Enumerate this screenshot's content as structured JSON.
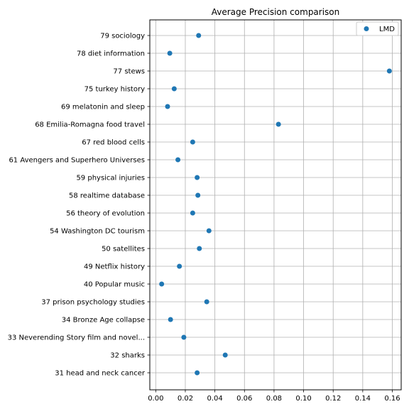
{
  "chart_data": {
    "type": "scatter",
    "title": "Average Precision comparison",
    "xlabel": "",
    "ylabel": "",
    "xlim": [
      -0.004,
      0.166
    ],
    "xticks": [
      0.0,
      0.02,
      0.04,
      0.06,
      0.08,
      0.1,
      0.12,
      0.14,
      0.16
    ],
    "xtick_labels": [
      "0.00",
      "0.02",
      "0.04",
      "0.06",
      "0.08",
      "0.10",
      "0.12",
      "0.14",
      "0.16"
    ],
    "grid": true,
    "legend": {
      "placement": "top-right",
      "entries": [
        "LMD"
      ]
    },
    "color": "#1f77b4",
    "categories": [
      "79 sociology",
      "78 diet information",
      "77 stews",
      "75 turkey history",
      "69 melatonin and sleep",
      "68 Emilia-Romagna food travel",
      "67 red blood cells",
      "61 Avengers and Superhero Universes",
      "59 physical injuries",
      "58 realtime database",
      "56 theory of evolution",
      "54 Washington DC tourism",
      "50 satellites",
      "49 Netflix history",
      "40 Popular music",
      "37 prison psychology studies",
      "34 Bronze Age collapse",
      "33 Neverending Story film and novel...",
      "32 sharks",
      "31 head and neck cancer"
    ],
    "series": [
      {
        "name": "LMD",
        "values": [
          0.029,
          0.0095,
          0.158,
          0.0125,
          0.008,
          0.083,
          0.025,
          0.015,
          0.028,
          0.0285,
          0.025,
          0.036,
          0.0295,
          0.016,
          0.004,
          0.0345,
          0.01,
          0.019,
          0.047,
          0.028
        ]
      }
    ]
  }
}
